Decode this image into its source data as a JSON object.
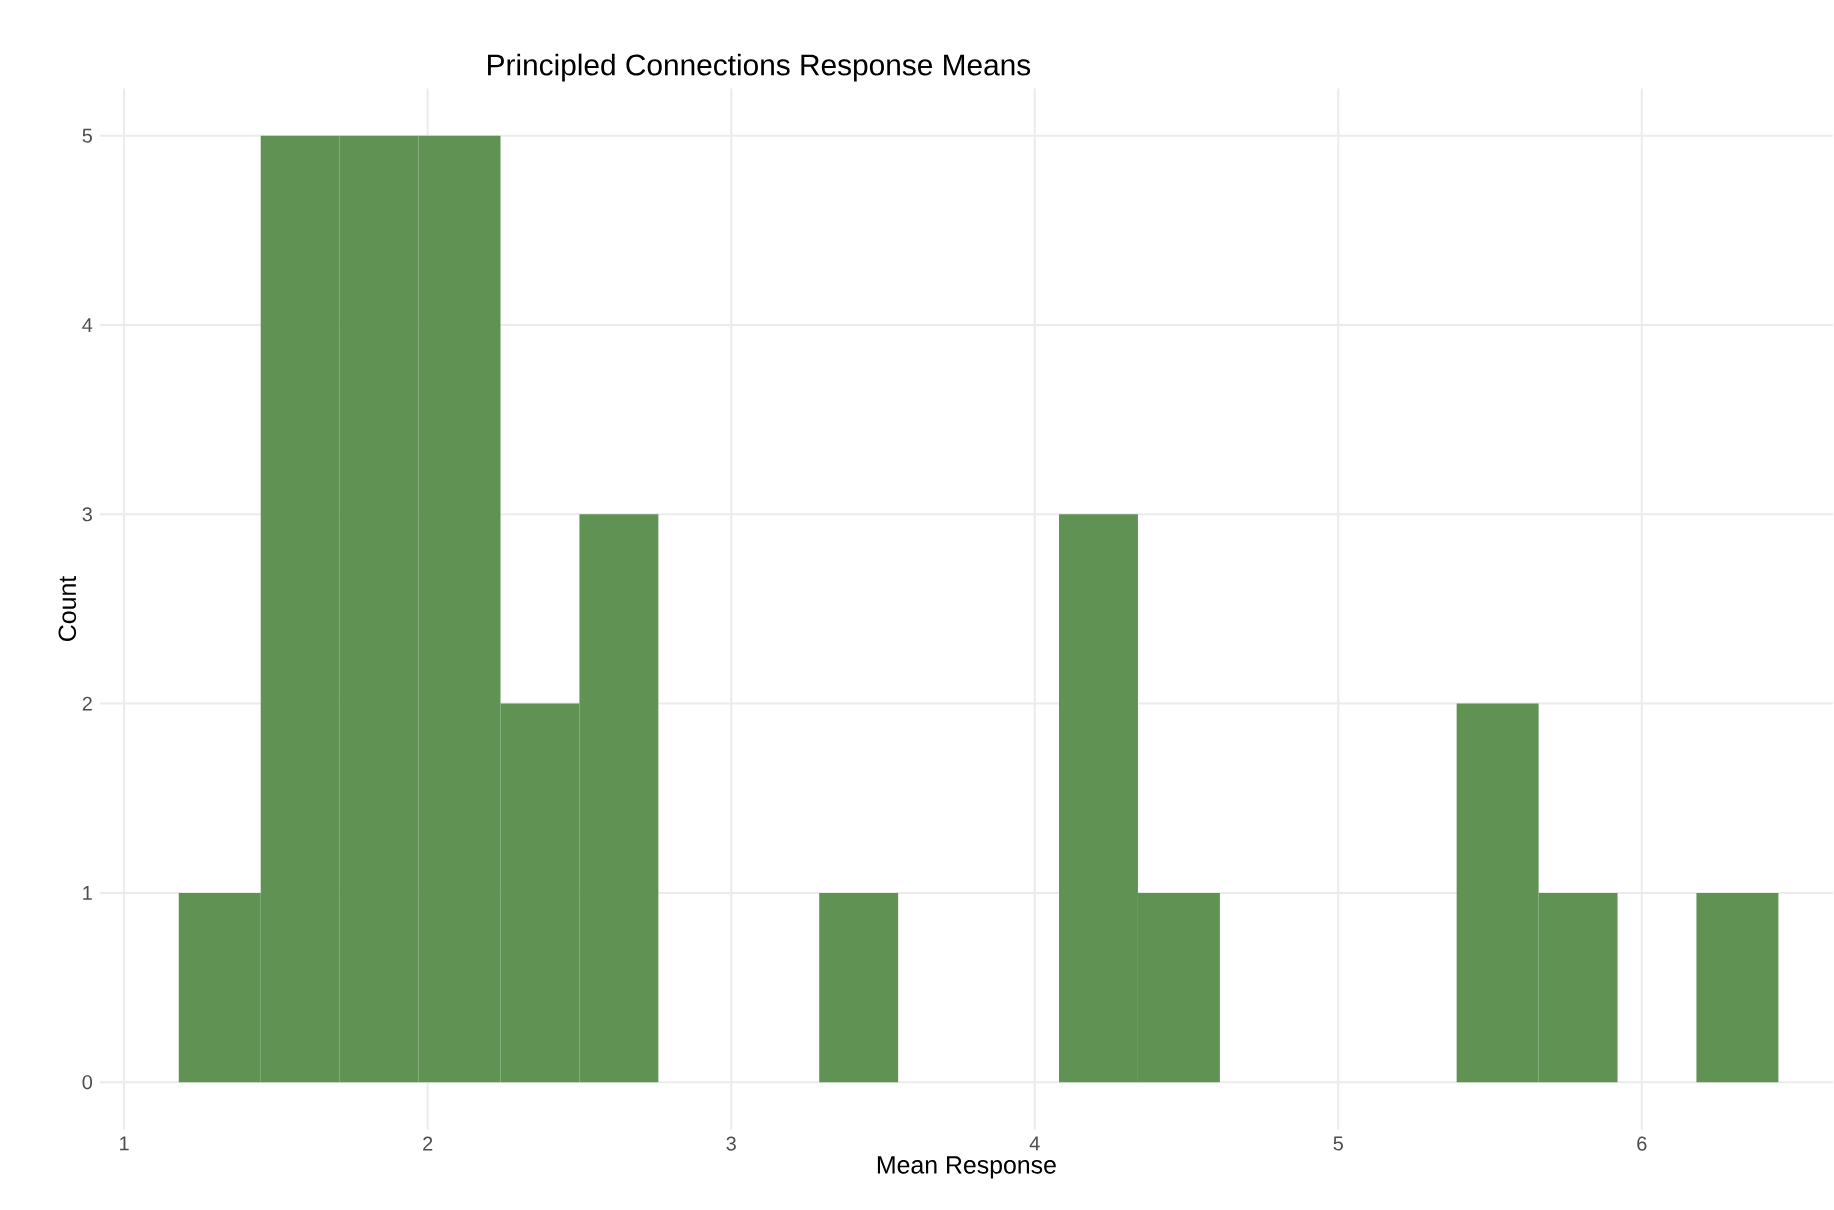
{
  "chart_data": {
    "type": "histogram",
    "title": "Principled Connections Response Means",
    "xlabel": "Mean Response",
    "ylabel": "Count",
    "bins": [
      1.18,
      1.45,
      1.71,
      1.97,
      2.24,
      2.5,
      2.76,
      3.29,
      3.55,
      4.08,
      4.34,
      4.61,
      5.39,
      5.66,
      5.92,
      6.18,
      6.45
    ],
    "values": [
      1,
      5,
      5,
      5,
      2,
      3,
      0,
      1,
      0,
      3,
      1,
      0,
      2,
      1,
      0,
      1
    ],
    "color": "#5f9253",
    "xlim": [
      0.92,
      6.63
    ],
    "ylim": [
      -0.25,
      5.25
    ],
    "xticks": [
      1,
      2,
      3,
      4,
      5,
      6
    ],
    "yticks": [
      0,
      1,
      2,
      3,
      4,
      5
    ],
    "grid": true
  }
}
